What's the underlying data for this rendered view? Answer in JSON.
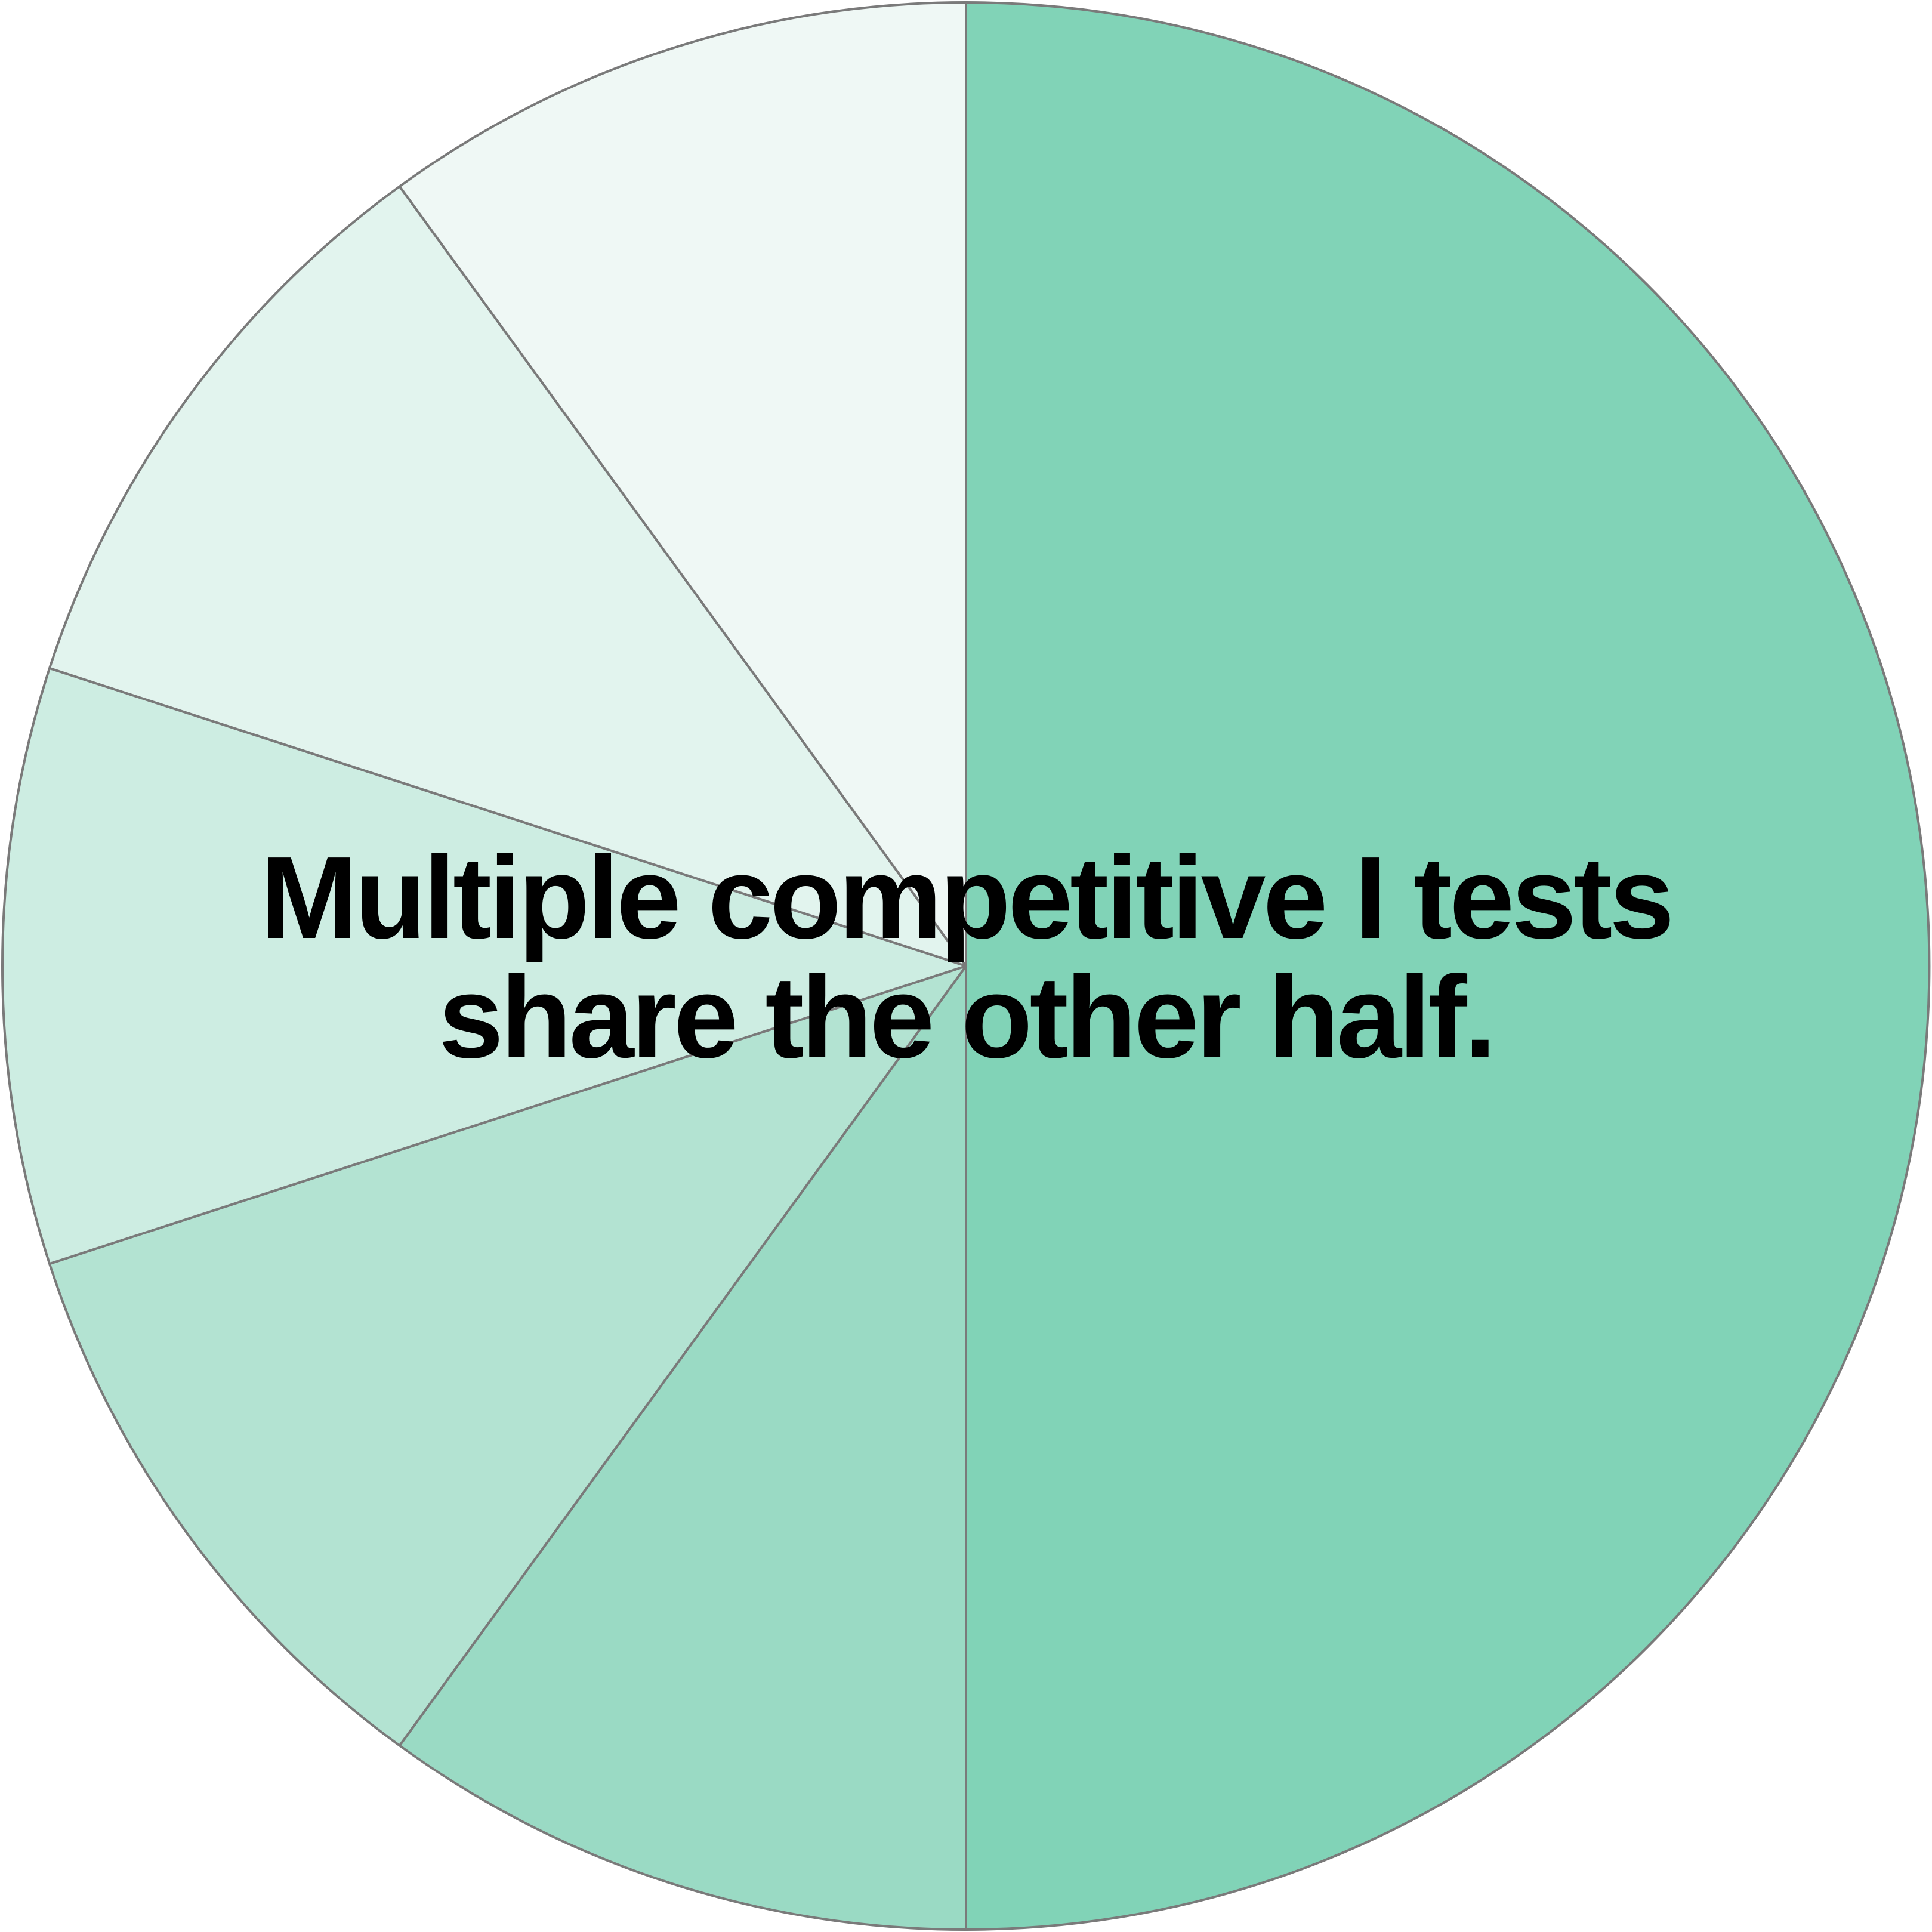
{
  "chart_data": {
    "type": "pie",
    "title": "",
    "center_text": [
      "Multiple competitive I tests",
      "share the other half."
    ],
    "start_angle_deg": 0,
    "direction": "clockwise",
    "slices": [
      {
        "value": 50,
        "color": "#81d3b7"
      },
      {
        "value": 10,
        "color": "#9adac4"
      },
      {
        "value": 10,
        "color": "#b3e3d2"
      },
      {
        "value": 10,
        "color": "#cdede2"
      },
      {
        "value": 10,
        "color": "#e2f4ee"
      },
      {
        "value": 10,
        "color": "#eff8f5"
      }
    ],
    "edge_color": "#7a7a7a"
  }
}
